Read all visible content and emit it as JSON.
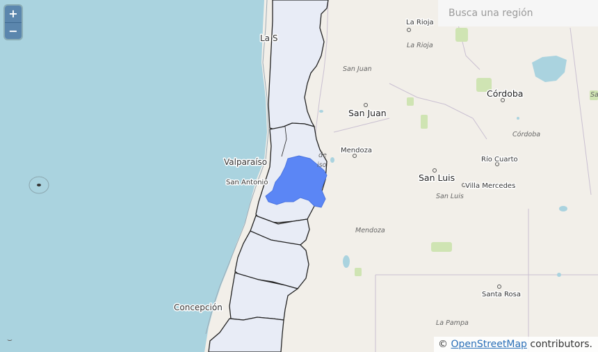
{
  "search": {
    "placeholder": "Busca una región"
  },
  "zoom": {
    "in_label": "+",
    "out_label": "−"
  },
  "attribution": {
    "prefix": "© ",
    "link_text": "OpenStreetMap",
    "suffix": " contributors."
  },
  "labels": {
    "la_serena": "La S",
    "la_rioja_city": "La Rioja",
    "la_rioja_prov": "La Rioja",
    "san_juan_prov": "San Juan",
    "san_juan_city": "San Juan",
    "cordoba_city": "Córdoba",
    "cordoba_prov": "Córdoba",
    "mendoza_city": "Mendoza",
    "mendoza_prov": "Mendoza",
    "valparaiso": "Valparaíso",
    "san_antonio": "San Antonio",
    "san_luis_city": "San Luis",
    "san_luis_prov": "San Luis",
    "rio_cuarto": "Río Cuarto",
    "villa_mercedes": "Villa Mercedes",
    "concepcion": "Concepción",
    "santa_rosa": "Santa Rosa",
    "la_pampa": "La Pampa",
    "de_fragment": "de",
    "iso_fragment": "iso",
    "sa_fragment": "Sa"
  },
  "colors": {
    "ocean": "#aad3df",
    "land": "#f2efe9",
    "region_fill": "#e8ecf6",
    "highlight": "#5b86f5",
    "park": "#c8e0a8",
    "water": "#aad3df"
  }
}
